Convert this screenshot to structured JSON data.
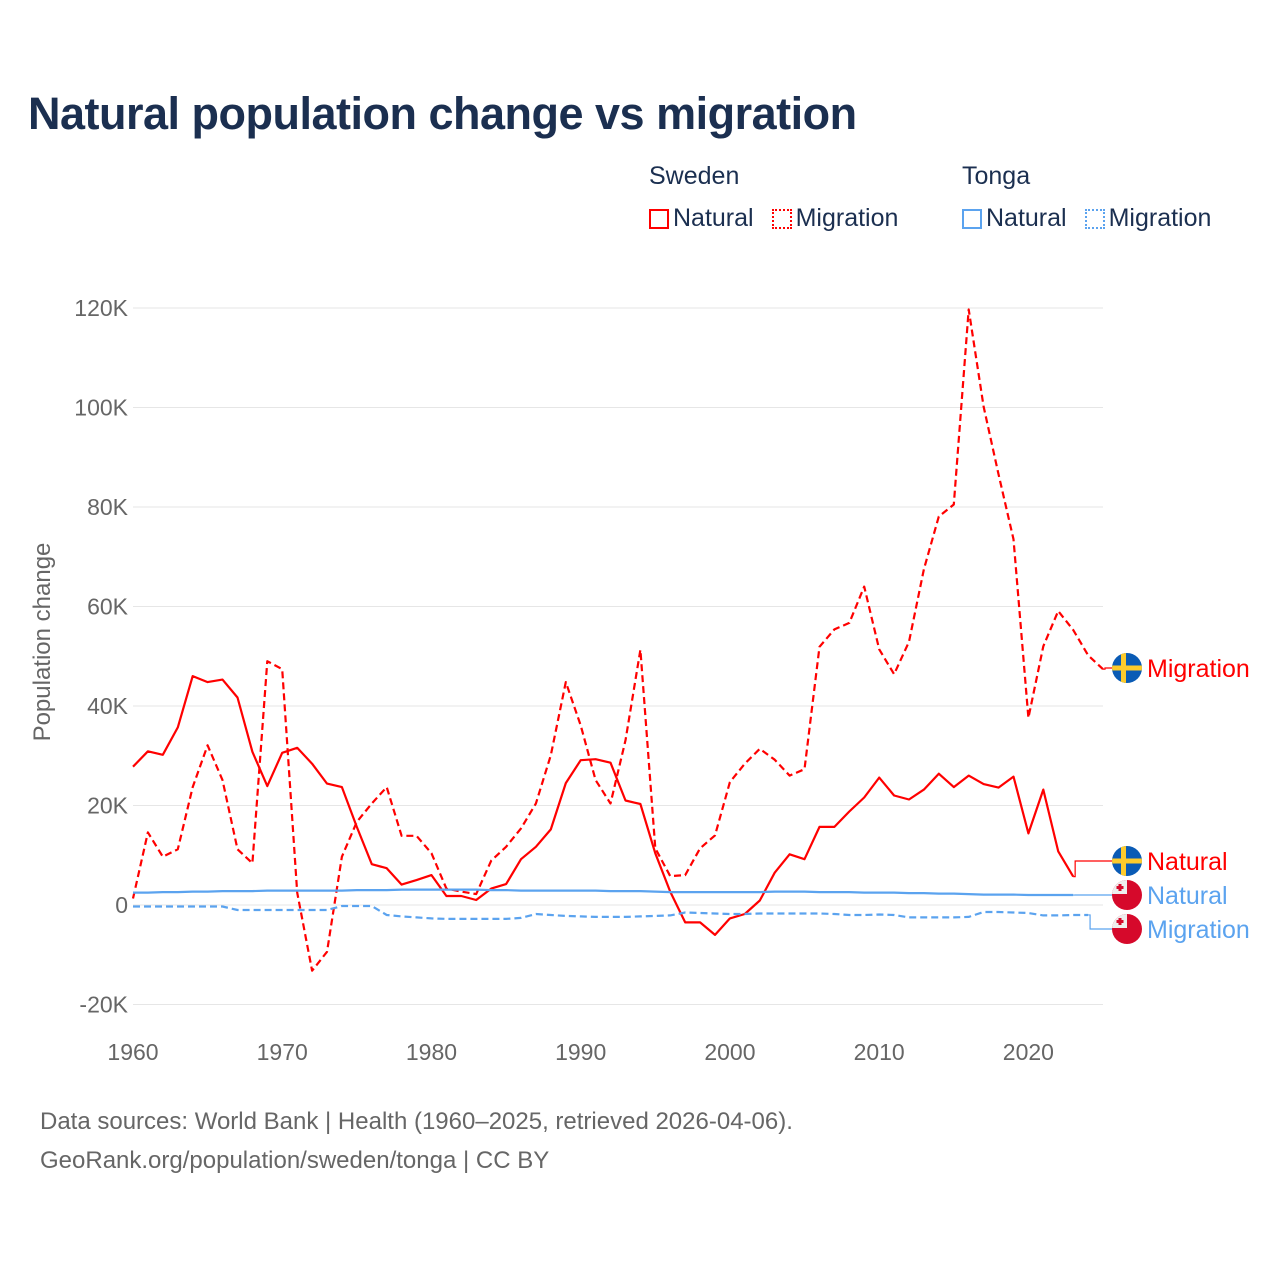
{
  "chart_data": {
    "type": "line",
    "title": "Natural population change vs migration",
    "xlabel": "",
    "ylabel": "Population change",
    "xlim": [
      1960,
      2025
    ],
    "ylim": [
      -20000,
      120000
    ],
    "x_ticks": [
      "1960",
      "1970",
      "1980",
      "1990",
      "2000",
      "2010",
      "2020"
    ],
    "y_ticks": [
      {
        "value": 120000,
        "label": "120K"
      },
      {
        "value": 100000,
        "label": "100K"
      },
      {
        "value": 80000,
        "label": "80K"
      },
      {
        "value": 60000,
        "label": "60K"
      },
      {
        "value": 40000,
        "label": "40K"
      },
      {
        "value": 20000,
        "label": "20K"
      },
      {
        "value": 0,
        "label": "0"
      },
      {
        "value": -20000,
        "label": "-20K"
      }
    ],
    "grid": true,
    "legend_position": "top-right",
    "legend": {
      "groups": [
        {
          "country": "Sweden",
          "items": [
            "Natural",
            "Migration"
          ]
        },
        {
          "country": "Tonga",
          "items": [
            "Natural",
            "Migration"
          ]
        }
      ]
    },
    "series": [
      {
        "name": "Sweden Natural",
        "country": "Sweden",
        "label": "Natural",
        "style": "solid",
        "color": "#ff0000",
        "flag": "sweden-flag",
        "start_year": 1960,
        "values_thousands": [
          27.8,
          30.9,
          30.2,
          35.7,
          46,
          44.8,
          45.3,
          41.7,
          30.8,
          23.9,
          30.6,
          31.6,
          28.4,
          24.4,
          23.7,
          15.7,
          8.2,
          7.4,
          4.1,
          5,
          6,
          1.8,
          1.8,
          1,
          3.3,
          4.2,
          9.2,
          11.7,
          15.2,
          24.5,
          29.1,
          29.3,
          28.6,
          21,
          20.3,
          10.4,
          2.7,
          -3.5,
          -3.5,
          -6,
          -2.7,
          -1.8,
          0.9,
          6.5,
          10.2,
          9.2,
          15.7,
          15.7,
          18.8,
          21.6,
          25.6,
          22,
          21.2,
          23.2,
          26.4,
          23.7,
          26,
          24.3,
          23.6,
          25.8,
          14.4,
          23.2,
          10.8,
          5.7
        ]
      },
      {
        "name": "Sweden Migration",
        "country": "Sweden",
        "label": "Migration",
        "style": "dashed",
        "color": "#ff0000",
        "flag": "sweden-flag",
        "start_year": 1960,
        "values_thousands": [
          1.3,
          14.6,
          9.7,
          11.2,
          23.7,
          32.1,
          25.1,
          11.2,
          8.4,
          49,
          47.4,
          2.5,
          -13.2,
          -9.4,
          9.7,
          16.7,
          20.4,
          23.7,
          13.9,
          13.9,
          10.4,
          3.3,
          2.7,
          2.2,
          8.9,
          11.7,
          15.4,
          20.4,
          30.1,
          44.8,
          36.1,
          25.1,
          20.4,
          33.1,
          51.3,
          11.4,
          5.8,
          6,
          11.4,
          14,
          24.7,
          28.4,
          31.4,
          29.2,
          26,
          27.3,
          51.9,
          55.4,
          56.7,
          64,
          51.4,
          46.4,
          52.9,
          67.5,
          78.1,
          80.5,
          119.7,
          100.2,
          86.6,
          73.5,
          37.6,
          52,
          59.1,
          55.3,
          50.2,
          47.4
        ]
      },
      {
        "name": "Tonga Natural",
        "country": "Tonga",
        "label": "Natural",
        "style": "solid",
        "color": "#5ba3ef",
        "flag": "tonga-flag",
        "start_year": 1960,
        "values_thousands": [
          2.5,
          2.5,
          2.6,
          2.6,
          2.7,
          2.7,
          2.8,
          2.8,
          2.8,
          2.9,
          2.9,
          2.9,
          2.9,
          2.9,
          2.9,
          3.0,
          3.0,
          3.0,
          3.1,
          3.1,
          3.1,
          3.1,
          3.1,
          3.1,
          3.0,
          3.0,
          2.9,
          2.9,
          2.9,
          2.9,
          2.9,
          2.9,
          2.8,
          2.8,
          2.8,
          2.7,
          2.6,
          2.6,
          2.6,
          2.6,
          2.6,
          2.6,
          2.6,
          2.7,
          2.7,
          2.7,
          2.6,
          2.6,
          2.6,
          2.5,
          2.5,
          2.5,
          2.4,
          2.4,
          2.3,
          2.3,
          2.2,
          2.1,
          2.1,
          2.1,
          2.0,
          2.0,
          2.0,
          2.0
        ]
      },
      {
        "name": "Tonga Migration",
        "country": "Tonga",
        "label": "Migration",
        "style": "dashed",
        "color": "#5ba3ef",
        "flag": "tonga-flag",
        "start_year": 1960,
        "values_thousands": [
          -0.3,
          -0.3,
          -0.3,
          -0.3,
          -0.3,
          -0.3,
          -0.3,
          -1.0,
          -1.0,
          -1.0,
          -1.0,
          -1.0,
          -1.0,
          -1.0,
          -0.2,
          -0.2,
          -0.2,
          -2.0,
          -2.3,
          -2.5,
          -2.7,
          -2.8,
          -2.8,
          -2.8,
          -2.8,
          -2.8,
          -2.6,
          -1.8,
          -2.0,
          -2.2,
          -2.3,
          -2.4,
          -2.4,
          -2.4,
          -2.3,
          -2.2,
          -2.1,
          -1.5,
          -1.6,
          -1.7,
          -1.8,
          -1.8,
          -1.7,
          -1.7,
          -1.7,
          -1.7,
          -1.7,
          -1.8,
          -2.0,
          -2.0,
          -1.9,
          -2.0,
          -2.5,
          -2.5,
          -2.5,
          -2.5,
          -2.4,
          -1.4,
          -1.4,
          -1.5,
          -1.6,
          -2.1,
          -2.1,
          -2.0,
          -2.0
        ]
      }
    ]
  },
  "sources": {
    "line1": "Data sources: World Bank | Health (1960–2025, retrieved 2026-04-06).",
    "line2": "GeoRank.org/population/sweden/tonga | CC BY"
  }
}
